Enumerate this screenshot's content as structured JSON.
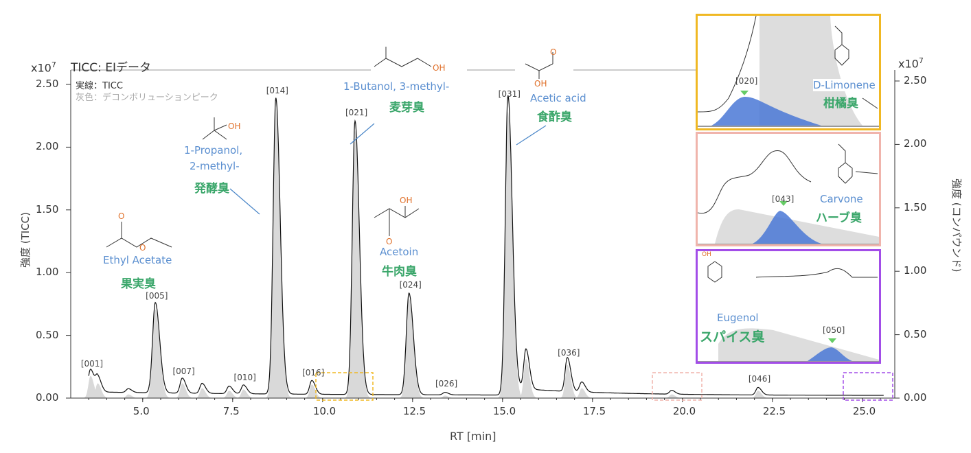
{
  "chart_data": {
    "type": "line",
    "title": "TICC: EIデータ",
    "legend": [
      "実線：TICC",
      "灰色：デコンボリューションピーク"
    ],
    "xlabel": "RT [min]",
    "ylabel": "強度 (TICC)",
    "ylabel_right": "強度 (コンパウンド)",
    "y_multiplier": "x10",
    "y_multiplier_exp": "7",
    "xlim": [
      3.0,
      25.9
    ],
    "ylim": [
      0,
      2.5
    ],
    "xticks": [
      "5.0",
      "7.5",
      "10.0",
      "12.5",
      "15.0",
      "17.5",
      "20.0",
      "22.5",
      "25.0"
    ],
    "xtick_values": [
      5,
      7.5,
      10,
      12.5,
      15,
      17.5,
      20,
      22.5,
      25
    ],
    "yticks": [
      "0.00",
      "0.50",
      "1.00",
      "1.50",
      "2.00",
      "2.50"
    ],
    "ytick_values": [
      0,
      0.5,
      1,
      1.5,
      2,
      2.5
    ],
    "peaks": [
      {
        "id": "[001]",
        "rt": 3.55,
        "h": 0.18
      },
      {
        "id": "",
        "rt": 3.75,
        "h": 0.12
      },
      {
        "id": "",
        "rt": 4.6,
        "h": 0.03
      },
      {
        "id": "[005]",
        "rt": 5.35,
        "h": 0.72
      },
      {
        "id": "[007]",
        "rt": 6.1,
        "h": 0.12
      },
      {
        "id": "",
        "rt": 6.65,
        "h": 0.08
      },
      {
        "id": "",
        "rt": 7.4,
        "h": 0.06
      },
      {
        "id": "[010]",
        "rt": 7.8,
        "h": 0.07
      },
      {
        "id": "[014]",
        "rt": 8.7,
        "h": 2.36
      },
      {
        "id": "[016]",
        "rt": 9.7,
        "h": 0.11
      },
      {
        "id": "[021]",
        "rt": 10.9,
        "h": 2.18
      },
      {
        "id": "[024]",
        "rt": 12.4,
        "h": 0.81
      },
      {
        "id": "[026]",
        "rt": 13.4,
        "h": 0.02
      },
      {
        "id": "[031]",
        "rt": 15.15,
        "h": 2.33
      },
      {
        "id": "",
        "rt": 15.65,
        "h": 0.32
      },
      {
        "id": "[036]",
        "rt": 16.8,
        "h": 0.27
      },
      {
        "id": "",
        "rt": 17.2,
        "h": 0.08
      },
      {
        "id": "",
        "rt": 19.7,
        "h": 0.03
      },
      {
        "id": "[046]",
        "rt": 22.1,
        "h": 0.06
      }
    ]
  },
  "compounds": [
    {
      "name": "Ethyl Acetate",
      "odor": "果実臭",
      "peak": "[005]"
    },
    {
      "name": "1-Propanol,",
      "name2": "2-methyl-",
      "odor": "発酵臭",
      "peak": "[014]"
    },
    {
      "name": "1-Butanol, 3-methyl-",
      "odor": "麦芽臭",
      "peak": "[021]"
    },
    {
      "name": "Acetoin",
      "odor": "牛肉臭",
      "peak": "[024]"
    },
    {
      "name": "Acetic acid",
      "odor": "食酢臭",
      "peak": "[031]"
    }
  ],
  "insets": [
    {
      "name": "D-Limonene",
      "odor": "柑橘臭",
      "peak": "[020]",
      "color": "#f0b823"
    },
    {
      "name": "Carvone",
      "odor": "ハーブ臭",
      "peak": "[043]",
      "color": "#f0b4ac"
    },
    {
      "name": "Eugenol",
      "odor": "スパイス臭",
      "peak": "[050]",
      "color": "#a24de8"
    }
  ],
  "atoms": {
    "o": "O",
    "oh": "OH"
  }
}
